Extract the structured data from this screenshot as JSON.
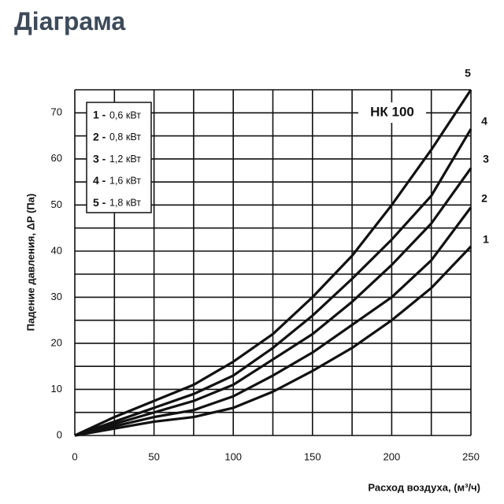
{
  "header": {
    "title": "Діаграма"
  },
  "chart_data": {
    "type": "line",
    "annotation": "НК 100",
    "x_label": "Расход воздуха, (м³/ч)",
    "y_label": "Падение давления, ΔP (Па)",
    "x": [
      0,
      25,
      50,
      75,
      100,
      125,
      150,
      175,
      200,
      225,
      250
    ],
    "series": [
      {
        "name": "1",
        "color": "#111111",
        "values": [
          0,
          1.5,
          3,
          4,
          6,
          9.5,
          14,
          19,
          25,
          32,
          41
        ]
      },
      {
        "name": "2",
        "color": "#111111",
        "values": [
          0,
          2,
          4,
          5.5,
          8.5,
          13,
          18,
          24,
          30,
          38,
          49.5
        ]
      },
      {
        "name": "3",
        "color": "#111111",
        "values": [
          0,
          2.5,
          5,
          7.5,
          11,
          16.5,
          22,
          29,
          37,
          46,
          58
        ]
      },
      {
        "name": "4",
        "color": "#111111",
        "values": [
          0,
          3,
          6,
          9,
          13,
          19,
          26,
          34,
          42.5,
          52,
          66.5
        ]
      },
      {
        "name": "5",
        "color": "#111111",
        "values": [
          0,
          4,
          7.5,
          11,
          16,
          22,
          30,
          39,
          50,
          62,
          75
        ]
      }
    ],
    "legend": [
      {
        "key": "1 -",
        "text": "0,6 кВт"
      },
      {
        "key": "2 -",
        "text": "0,8 кВт"
      },
      {
        "key": "3 -",
        "text": "1,2 кВт"
      },
      {
        "key": "4 -",
        "text": "1,6 кВт"
      },
      {
        "key": "5 -",
        "text": "1,8 кВт"
      }
    ],
    "xlim": [
      0,
      250
    ],
    "xticks": [
      0,
      50,
      100,
      150,
      200,
      250
    ],
    "xgrid": [
      0,
      25,
      50,
      75,
      100,
      125,
      150,
      175,
      200,
      225,
      250
    ],
    "ylim": [
      0,
      75
    ],
    "yticks": [
      0,
      10,
      20,
      30,
      40,
      50,
      60,
      70
    ],
    "ygrid": [
      0,
      5,
      10,
      15,
      20,
      25,
      30,
      35,
      40,
      45,
      50,
      55,
      60,
      65,
      70,
      75
    ],
    "grid": true
  }
}
